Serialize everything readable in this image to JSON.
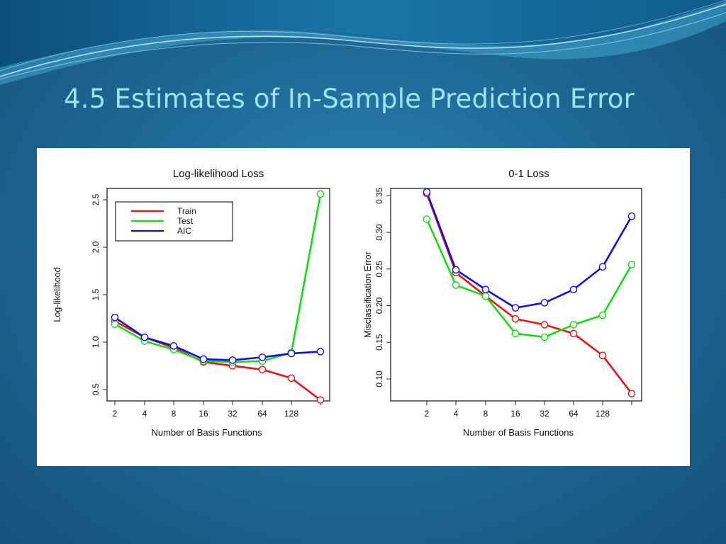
{
  "slide": {
    "title": "4.5 Estimates of In-Sample Prediction Error"
  },
  "colors": {
    "Train": "#ee1111",
    "Test": "#11dd11",
    "AIC": "#1111dd"
  },
  "chart_data": [
    {
      "type": "line",
      "title": "Log-likelihood Loss",
      "xlabel": "Number of Basis Functions",
      "ylabel": "Log-likelihood",
      "x": [
        2,
        4,
        8,
        16,
        32,
        64,
        128,
        256
      ],
      "x_tick_labels": [
        "2",
        "4",
        "8",
        "16",
        "32",
        "64",
        "128"
      ],
      "x_scale": "log2",
      "y_ticks": [
        "0.5",
        "1.0",
        "1.5",
        "2.0",
        "2.5"
      ],
      "ylim": [
        0.38,
        2.62
      ],
      "legend": {
        "position": "top-left",
        "entries": [
          "Train",
          "Test",
          "AIC"
        ]
      },
      "series": [
        {
          "name": "Train",
          "values": [
            1.22,
            1.05,
            0.94,
            0.79,
            0.75,
            0.71,
            0.62,
            0.39
          ]
        },
        {
          "name": "Test",
          "values": [
            1.19,
            1.01,
            0.92,
            0.8,
            0.79,
            0.8,
            0.89,
            2.56
          ]
        },
        {
          "name": "AIC",
          "values": [
            1.26,
            1.05,
            0.96,
            0.82,
            0.81,
            0.84,
            0.88,
            0.9
          ]
        }
      ]
    },
    {
      "type": "line",
      "title": "0-1 Loss",
      "xlabel": "Number of Basis Functions",
      "ylabel": "Misclassification Error",
      "x": [
        2,
        4,
        8,
        16,
        32,
        64,
        128,
        256
      ],
      "x_tick_labels": [
        "2",
        "4",
        "8",
        "16",
        "32",
        "64",
        "128"
      ],
      "x_scale": "log2",
      "y_ticks": [
        "0.10",
        "0.15",
        "0.20",
        "0.25",
        "0.30",
        "0.35"
      ],
      "ylim": [
        0.07,
        0.36
      ],
      "series": [
        {
          "name": "Train",
          "values": [
            0.353,
            0.245,
            0.213,
            0.182,
            0.174,
            0.162,
            0.132,
            0.08
          ]
        },
        {
          "name": "Test",
          "values": [
            0.318,
            0.228,
            0.213,
            0.162,
            0.157,
            0.174,
            0.187,
            0.256
          ]
        },
        {
          "name": "AIC",
          "values": [
            0.355,
            0.249,
            0.222,
            0.197,
            0.204,
            0.222,
            0.253,
            0.322
          ]
        }
      ]
    }
  ]
}
